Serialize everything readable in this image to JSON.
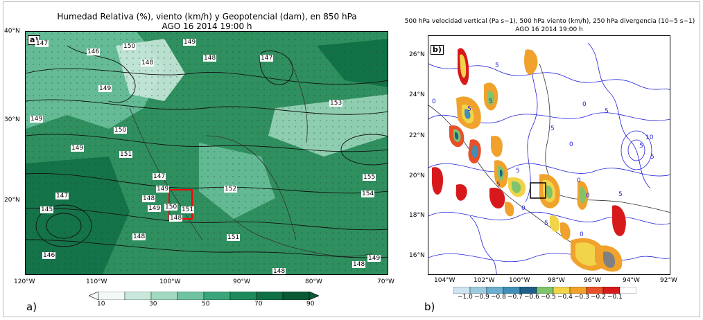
{
  "panel_a": {
    "letter": "a)",
    "sublabel": "a)",
    "title": "Humedad Relativa (%), viento (km/h) y Geopotencial (dam), en 850 hPa",
    "subtitle": "AGO 16 2014 19:00 h",
    "lat_ticks": [
      "40°N",
      "30°N",
      "20°N"
    ],
    "lon_ticks": [
      "120°W",
      "110°W",
      "100°W",
      "90°W",
      "80°W",
      "70°W"
    ],
    "colorbar": {
      "ticks": [
        "10",
        "30",
        "50",
        "70",
        "90"
      ],
      "colors": [
        "#f2f8f5",
        "#c9e8dc",
        "#a0d8c0",
        "#6fc3a0",
        "#3aa57a",
        "#1f8a5b",
        "#0f6f45",
        "#0a5a36"
      ]
    },
    "contour_labels": [
      "147",
      "146",
      "150",
      "148",
      "149",
      "149",
      "148",
      "147",
      "153",
      "149",
      "150",
      "149",
      "151",
      "147",
      "149",
      "148",
      "149",
      "150",
      "151",
      "148",
      "152",
      "155",
      "154",
      "145",
      "147",
      "148",
      "146",
      "151",
      "148",
      "148",
      "149"
    ],
    "colors": {
      "land_green": "#2f8f5e",
      "wind_barb": "#222222",
      "box": "#ff0000"
    }
  },
  "panel_b": {
    "letter": "b)",
    "sublabel": "b)",
    "title": "500 hPa velocidad vertical (Pa s−1), 500 hPa viento (km/h), 250 hPa divergencia (10−5 s−1)",
    "subtitle": "AGO 16 2014 19:00 h",
    "lat_ticks": [
      "26°N",
      "24°N",
      "22°N",
      "20°N",
      "18°N",
      "16°N"
    ],
    "lon_ticks": [
      "104°W",
      "102°W",
      "100°W",
      "98°W",
      "96°W",
      "94°W",
      "92°W"
    ],
    "colorbar": {
      "ticks": [
        "−1.0",
        "−0.9",
        "−0.8",
        "−0.7",
        "−0.6",
        "−0.5",
        "−0.4",
        "−0.3",
        "−0.2",
        "−0.1"
      ],
      "colors": [
        "#cfe3f0",
        "#9ccbe0",
        "#6aaed0",
        "#3f8fb8",
        "#1e5f8a",
        "#7fc46d",
        "#f1d44a",
        "#f0a22c",
        "#e8502a",
        "#d8191c",
        "#ffffff"
      ]
    },
    "contour_labels": [
      "5",
      "0",
      "5",
      "0",
      "5",
      "5",
      "5",
      "5",
      "0",
      "5",
      "0",
      "0",
      "5",
      "5",
      "10",
      "5",
      "0",
      "5",
      "0"
    ],
    "colors": {
      "divergence_line": "#2222dd",
      "box": "#000000"
    }
  }
}
